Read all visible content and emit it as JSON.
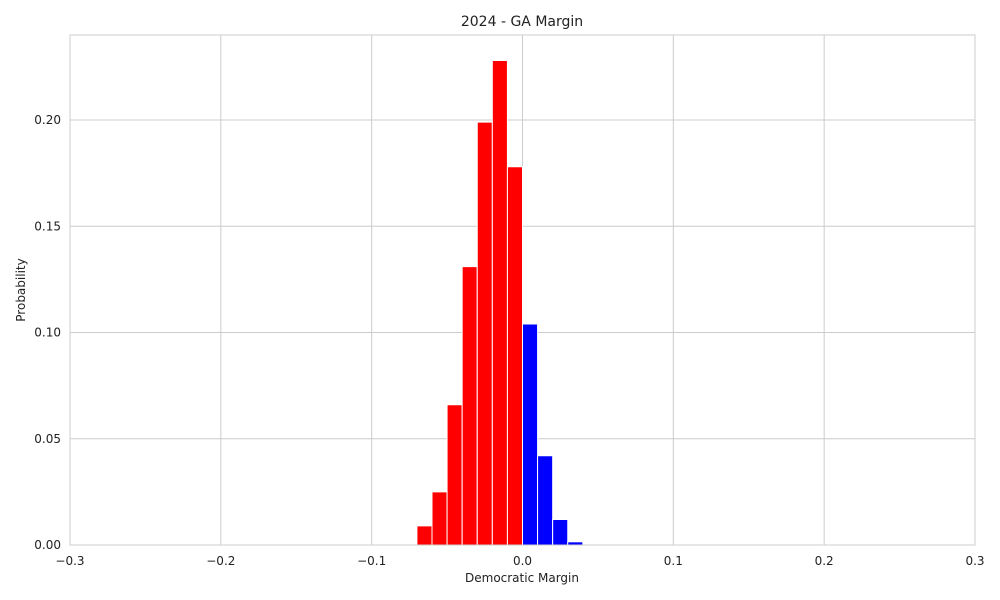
{
  "chart_data": {
    "type": "bar",
    "title": "2024 - GA Margin",
    "xlabel": "Democratic Margin",
    "ylabel": "Probability",
    "xlim": [
      -0.3,
      0.3
    ],
    "ylim": [
      0,
      0.24
    ],
    "grid": true,
    "bin_width": 0.01,
    "x_ticks": [
      -0.3,
      -0.2,
      -0.1,
      0.0,
      0.1,
      0.2,
      0.3
    ],
    "x_tick_labels": [
      "−0.3",
      "−0.2",
      "−0.1",
      "0.0",
      "0.1",
      "0.2",
      "0.3"
    ],
    "y_ticks": [
      0.0,
      0.05,
      0.1,
      0.15,
      0.2
    ],
    "y_tick_labels": [
      "0.00",
      "0.05",
      "0.10",
      "0.15",
      "0.20"
    ],
    "colors": {
      "republican": "#ff0000",
      "democratic": "#0000ff",
      "grid": "#cccccc"
    },
    "bins": [
      {
        "x": -0.07,
        "value": 0.009,
        "party": "republican"
      },
      {
        "x": -0.06,
        "value": 0.025,
        "party": "republican"
      },
      {
        "x": -0.05,
        "value": 0.066,
        "party": "republican"
      },
      {
        "x": -0.04,
        "value": 0.131,
        "party": "republican"
      },
      {
        "x": -0.03,
        "value": 0.199,
        "party": "republican"
      },
      {
        "x": -0.02,
        "value": 0.228,
        "party": "republican"
      },
      {
        "x": -0.01,
        "value": 0.178,
        "party": "republican"
      },
      {
        "x": 0.0,
        "value": 0.104,
        "party": "democratic"
      },
      {
        "x": 0.01,
        "value": 0.042,
        "party": "democratic"
      },
      {
        "x": 0.02,
        "value": 0.012,
        "party": "democratic"
      },
      {
        "x": 0.03,
        "value": 0.0015,
        "party": "democratic"
      }
    ]
  }
}
